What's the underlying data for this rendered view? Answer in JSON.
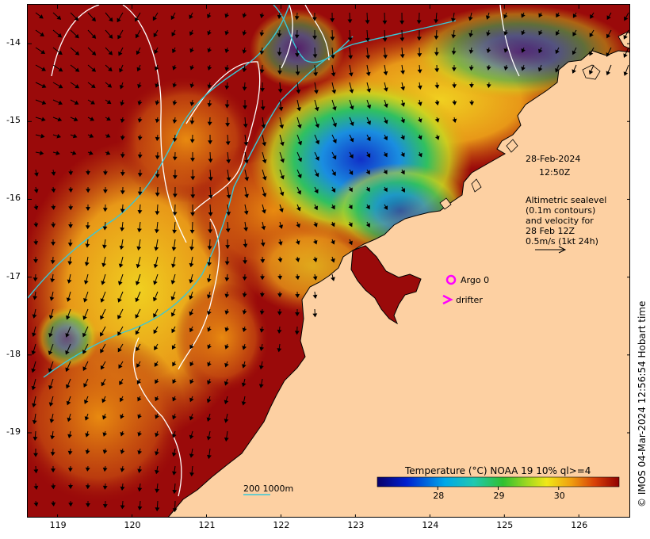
{
  "map": {
    "timestamp_date": "28-Feb-2024",
    "timestamp_time": "12:50Z",
    "legend_lines": [
      "Altimetric sealevel",
      "(0.1m contours)",
      "and velocity for",
      "28 Feb 12Z",
      "0.5m/s (1kt 24h)"
    ],
    "argo_label": "Argo 0",
    "drifter_label": "drifter",
    "bathy_label": "200  1000m",
    "credit": "© IMOS 04-Mar-2024 12:56:54 Hobart time",
    "axes": {
      "lon_ticks": [
        "119",
        "120",
        "121",
        "122",
        "123",
        "124",
        "125",
        "126"
      ],
      "lat_ticks": [
        "-14",
        "-15",
        "-16",
        "-17",
        "-18",
        "-19"
      ],
      "lon_range": [
        118.6,
        126.7
      ],
      "lat_range": [
        -20.1,
        -13.5
      ]
    },
    "colorbar": {
      "title": "Temperature (°C) NOAA 19 10% ql>=4",
      "tick_labels": [
        "28",
        "29",
        "30"
      ],
      "range": [
        27.0,
        31.0
      ]
    },
    "colors": {
      "land": "#fdd0a2",
      "warm_sst": "#9a0a0a",
      "contour": "#ffffff",
      "bathymetry": "#38c8d8",
      "argo": "#ff00ff",
      "drifter": "#ff00ff"
    }
  }
}
